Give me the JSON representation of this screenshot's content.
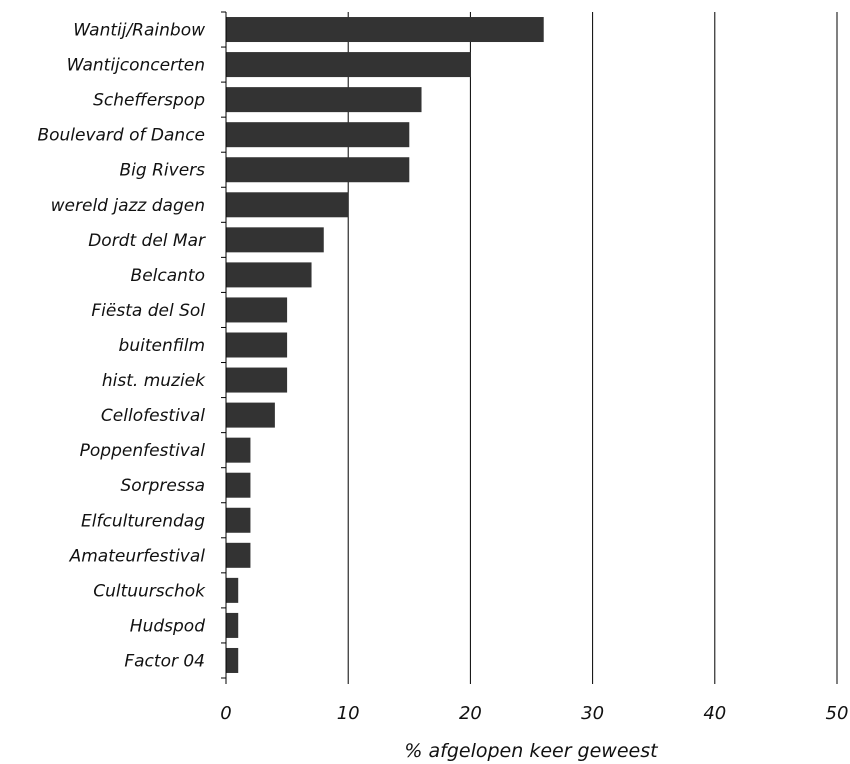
{
  "chart_data": {
    "type": "bar",
    "orientation": "horizontal",
    "categories": [
      "Wantij/Rainbow",
      "Wantijconcerten",
      "Schefferspop",
      "Boulevard of Dance",
      "Big Rivers",
      "wereld jazz dagen",
      "Dordt del Mar",
      "Belcanto",
      "Fiësta del Sol",
      "buitenfilm",
      "hist. muziek",
      "Cellofestival",
      "Poppenfestival",
      "Sorpressa",
      "Elfculturendag",
      "Amateurfestival",
      "Cultuurschok",
      "Hudspod",
      "Factor 04"
    ],
    "values": [
      26,
      20,
      16,
      15,
      15,
      10,
      8,
      7,
      5,
      5,
      5,
      4,
      2,
      2,
      2,
      2,
      1,
      1,
      1
    ],
    "title": "",
    "xlabel": "% afgelopen keer geweest",
    "ylabel": "",
    "xlim": [
      0,
      50
    ],
    "xticks": [
      "0",
      "10",
      "20",
      "30",
      "40",
      "50"
    ],
    "grid": "vertical",
    "legend": "none",
    "colors": {
      "bar": "#333333",
      "grid": "#000000"
    }
  }
}
